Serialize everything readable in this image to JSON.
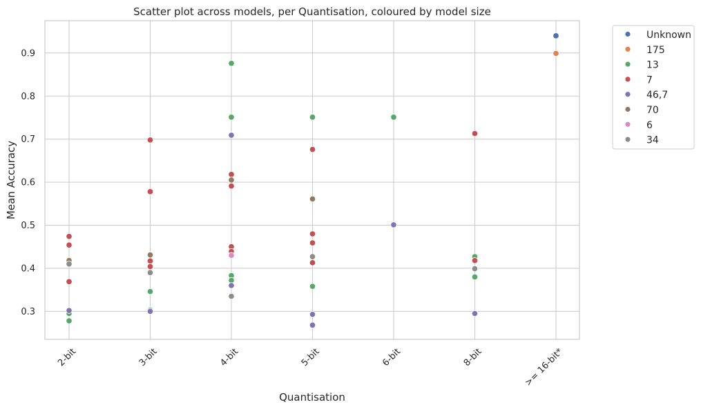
{
  "chart_data": {
    "type": "scatter",
    "title": "Scatter plot across models, per Quantisation, coloured by model size",
    "xlabel": "Quantisation",
    "ylabel": "Mean Accuracy",
    "categories": [
      "2-bit",
      "3-bit",
      "4-bit",
      "5-bit",
      "6-bit",
      "8-bit",
      ">= 16-bit*"
    ],
    "ylim": [
      0.235,
      0.975
    ],
    "yticks": [
      0.3,
      0.4,
      0.5,
      0.6,
      0.7,
      0.8,
      0.9
    ],
    "ytick_labels": [
      "0.3",
      "0.4",
      "0.5",
      "0.6",
      "0.7",
      "0.8",
      "0.9"
    ],
    "grid": true,
    "legend_position": "outside-top-right",
    "series": [
      {
        "name": "Unknown",
        "color": "#4c72b0",
        "points": [
          {
            "x": ">= 16-bit*",
            "y": 0.94
          }
        ]
      },
      {
        "name": "175",
        "color": "#dd8452",
        "points": [
          {
            "x": ">= 16-bit*",
            "y": 0.899
          }
        ]
      },
      {
        "name": "13",
        "color": "#55a868",
        "points": [
          {
            "x": "2-bit",
            "y": 0.295
          },
          {
            "x": "2-bit",
            "y": 0.278
          },
          {
            "x": "3-bit",
            "y": 0.346
          },
          {
            "x": "3-bit",
            "y": 0.303
          },
          {
            "x": "4-bit",
            "y": 0.876
          },
          {
            "x": "4-bit",
            "y": 0.751
          },
          {
            "x": "4-bit",
            "y": 0.383
          },
          {
            "x": "4-bit",
            "y": 0.372
          },
          {
            "x": "5-bit",
            "y": 0.751
          },
          {
            "x": "5-bit",
            "y": 0.358
          },
          {
            "x": "6-bit",
            "y": 0.751
          },
          {
            "x": "8-bit",
            "y": 0.427
          },
          {
            "x": "8-bit",
            "y": 0.38
          }
        ]
      },
      {
        "name": "7",
        "color": "#c44e52",
        "points": [
          {
            "x": "2-bit",
            "y": 0.474
          },
          {
            "x": "2-bit",
            "y": 0.454
          },
          {
            "x": "2-bit",
            "y": 0.369
          },
          {
            "x": "3-bit",
            "y": 0.698
          },
          {
            "x": "3-bit",
            "y": 0.578
          },
          {
            "x": "3-bit",
            "y": 0.417
          },
          {
            "x": "3-bit",
            "y": 0.404
          },
          {
            "x": "4-bit",
            "y": 0.618
          },
          {
            "x": "4-bit",
            "y": 0.591
          },
          {
            "x": "4-bit",
            "y": 0.45
          },
          {
            "x": "4-bit",
            "y": 0.439
          },
          {
            "x": "5-bit",
            "y": 0.676
          },
          {
            "x": "5-bit",
            "y": 0.48
          },
          {
            "x": "5-bit",
            "y": 0.459
          },
          {
            "x": "5-bit",
            "y": 0.413
          },
          {
            "x": "8-bit",
            "y": 0.713
          },
          {
            "x": "8-bit",
            "y": 0.418
          }
        ]
      },
      {
        "name": "46,7",
        "color": "#8172b3",
        "points": [
          {
            "x": "2-bit",
            "y": 0.302
          },
          {
            "x": "3-bit",
            "y": 0.3
          },
          {
            "x": "4-bit",
            "y": 0.709
          },
          {
            "x": "4-bit",
            "y": 0.36
          },
          {
            "x": "5-bit",
            "y": 0.293
          },
          {
            "x": "5-bit",
            "y": 0.268
          },
          {
            "x": "6-bit",
            "y": 0.501
          },
          {
            "x": "8-bit",
            "y": 0.295
          }
        ]
      },
      {
        "name": "70",
        "color": "#937860",
        "points": [
          {
            "x": "2-bit",
            "y": 0.418
          },
          {
            "x": "3-bit",
            "y": 0.431
          },
          {
            "x": "4-bit",
            "y": 0.605
          },
          {
            "x": "5-bit",
            "y": 0.561
          }
        ]
      },
      {
        "name": "6",
        "color": "#da8bc3",
        "points": [
          {
            "x": "4-bit",
            "y": 0.43
          }
        ]
      },
      {
        "name": "34",
        "color": "#8c8c8c",
        "points": [
          {
            "x": "2-bit",
            "y": 0.41
          },
          {
            "x": "3-bit",
            "y": 0.39
          },
          {
            "x": "4-bit",
            "y": 0.335
          },
          {
            "x": "5-bit",
            "y": 0.427
          },
          {
            "x": "8-bit",
            "y": 0.399
          }
        ]
      }
    ]
  }
}
